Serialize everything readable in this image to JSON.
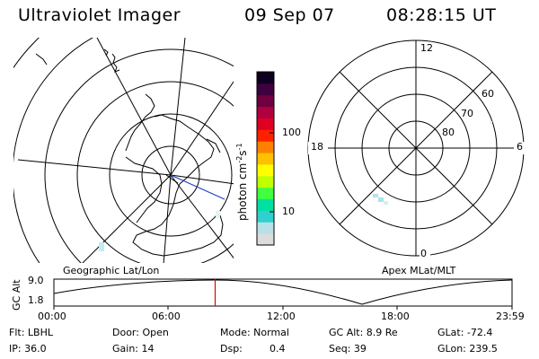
{
  "header": {
    "instrument": "Ultraviolet Imager",
    "date": "09 Sep 07",
    "time": "08:28:15 UT"
  },
  "colorbar": {
    "unit": "photon cm",
    "unit_exp1": "-2",
    "unit_s": "s",
    "unit_exp2": "-1",
    "tick_high": "100",
    "tick_low": "10",
    "colors": [
      "#dcdcdc",
      "#b8e0e8",
      "#30d0d0",
      "#00e0a0",
      "#40ff40",
      "#c0ff00",
      "#ffff00",
      "#ffc000",
      "#ff8000",
      "#ff2000",
      "#e00020",
      "#b00040",
      "#700040",
      "#400040",
      "#100020"
    ]
  },
  "left_panel": {
    "caption": "Geographic Lat/Lon"
  },
  "right_panel": {
    "caption": "Apex MLat/MLT",
    "mlt_top": "12",
    "mlt_left": "18",
    "mlt_right": "6",
    "mlt_bottom": "0",
    "lat_60": "60",
    "lat_70": "70",
    "lat_80": "80"
  },
  "altitude_strip": {
    "axis_label": "GC Alt",
    "y_top": "9.0",
    "y_bottom": "1.8",
    "x_ticks": [
      "00:00",
      "06:00",
      "12:00",
      "18:00",
      "23:59"
    ],
    "current_time_fraction": 0.352
  },
  "status": {
    "flt": "Flt: LBHL",
    "ip": "IP: 36.0",
    "door": "Door: Open",
    "gain": "Gain: 14",
    "mode": "Mode: Normal",
    "dsp_label": "Dsp:",
    "dsp_value": "0.4",
    "gc_alt": "GC Alt: 8.9 Re",
    "seq": "Seq: 39",
    "glat": "GLat: -72.4",
    "glon": "GLon: 239.5"
  }
}
